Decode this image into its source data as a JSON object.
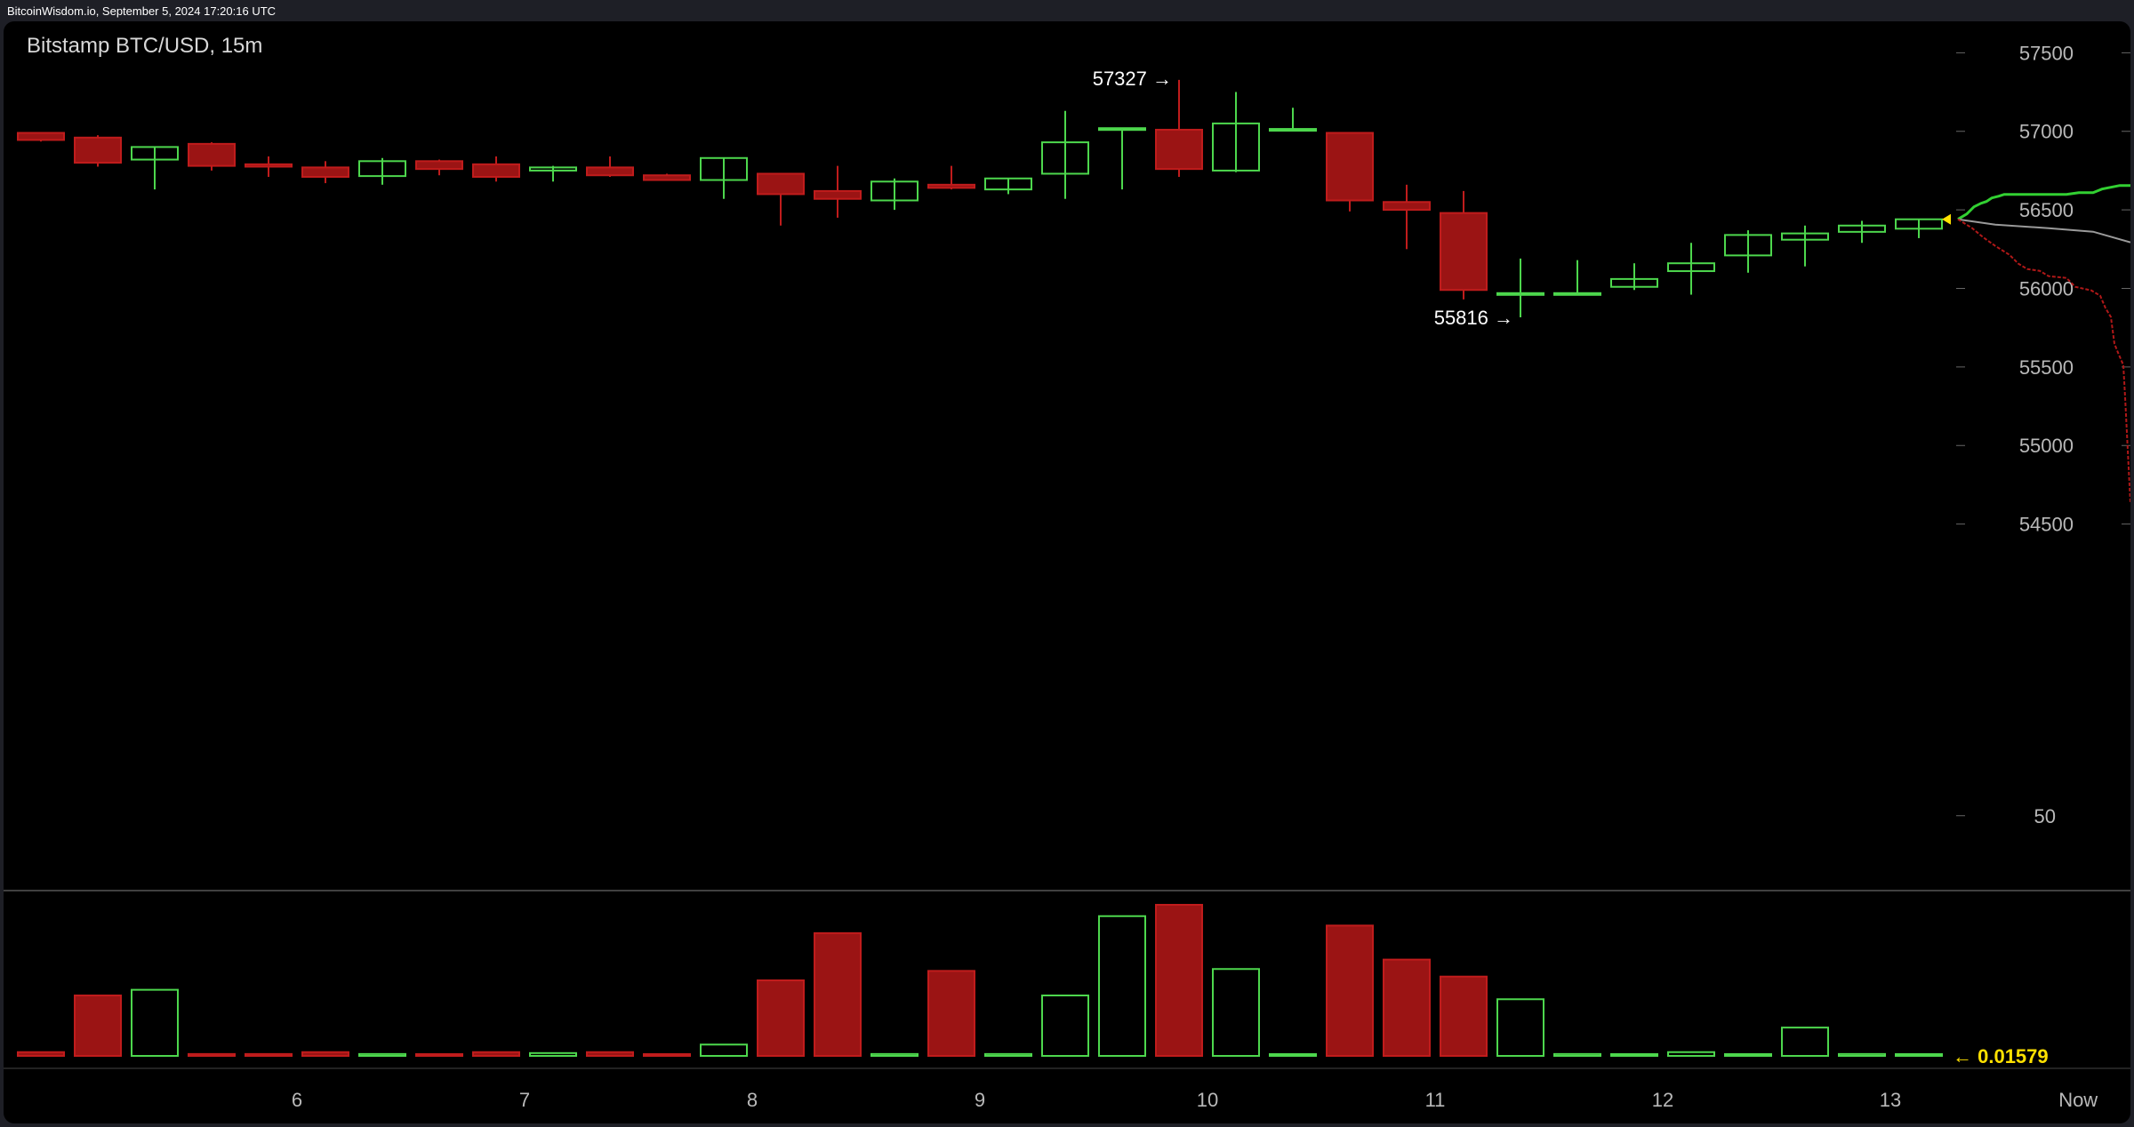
{
  "header": {
    "stamp": "BitcoinWisdom.io, September 5, 2024 17:20:16 UTC"
  },
  "chart_data": {
    "type": "candlestick",
    "title": "Bitstamp BTC/USD, 15m",
    "price_ylim": [
      54000,
      57700
    ],
    "price_ticks": [
      "57500",
      "57000",
      "56500",
      "56000",
      "55500",
      "55000",
      "54500"
    ],
    "volume_ylim": [
      0,
      80
    ],
    "volume_tick": "50",
    "x_ticks": [
      {
        "label": "6",
        "index": 4.5
      },
      {
        "label": "7",
        "index": 8.5
      },
      {
        "label": "8",
        "index": 12.5
      },
      {
        "label": "9",
        "index": 16.5
      },
      {
        "label": "10",
        "index": 20.5
      },
      {
        "label": "11",
        "index": 24.5
      },
      {
        "label": "12",
        "index": 28.5
      },
      {
        "label": "13",
        "index": 32.5
      },
      {
        "label": "Now",
        "index": 35.8
      }
    ],
    "candles": [
      {
        "o": 56990,
        "h": 56995,
        "l": 56935,
        "c": 56945,
        "v": 2
      },
      {
        "o": 56960,
        "h": 56975,
        "l": 56775,
        "c": 56800,
        "v": 32
      },
      {
        "o": 56820,
        "h": 56900,
        "l": 56630,
        "c": 56900,
        "v": 35
      },
      {
        "o": 56920,
        "h": 56930,
        "l": 56750,
        "c": 56780,
        "v": 1
      },
      {
        "o": 56790,
        "h": 56840,
        "l": 56710,
        "c": 56775,
        "v": 1
      },
      {
        "o": 56770,
        "h": 56810,
        "l": 56670,
        "c": 56710,
        "v": 2
      },
      {
        "o": 56715,
        "h": 56830,
        "l": 56660,
        "c": 56810,
        "v": 1
      },
      {
        "o": 56810,
        "h": 56820,
        "l": 56720,
        "c": 56760,
        "v": 0.5
      },
      {
        "o": 56790,
        "h": 56840,
        "l": 56680,
        "c": 56710,
        "v": 2
      },
      {
        "o": 56750,
        "h": 56780,
        "l": 56680,
        "c": 56770,
        "v": 1.5
      },
      {
        "o": 56770,
        "h": 56840,
        "l": 56710,
        "c": 56720,
        "v": 2
      },
      {
        "o": 56720,
        "h": 56730,
        "l": 56690,
        "c": 56690,
        "v": 0.5
      },
      {
        "o": 56690,
        "h": 56830,
        "l": 56570,
        "c": 56830,
        "v": 6
      },
      {
        "o": 56730,
        "h": 56730,
        "l": 56400,
        "c": 56600,
        "v": 40
      },
      {
        "o": 56620,
        "h": 56780,
        "l": 56450,
        "c": 56570,
        "v": 65
      },
      {
        "o": 56560,
        "h": 56700,
        "l": 56500,
        "c": 56680,
        "v": 1
      },
      {
        "o": 56660,
        "h": 56780,
        "l": 56630,
        "c": 56640,
        "v": 45
      },
      {
        "o": 56630,
        "h": 56700,
        "l": 56600,
        "c": 56700,
        "v": 1
      },
      {
        "o": 56730,
        "h": 57130,
        "l": 56570,
        "c": 56930,
        "v": 32
      },
      {
        "o": 57020,
        "h": 57020,
        "l": 56630,
        "c": 57020,
        "v": 74
      },
      {
        "o": 57010,
        "h": 57327,
        "l": 56710,
        "c": 56760,
        "v": 80
      },
      {
        "o": 56750,
        "h": 57250,
        "l": 56740,
        "c": 57050,
        "v": 46
      },
      {
        "o": 57015,
        "h": 57150,
        "l": 57010,
        "c": 57015,
        "v": 0.5
      },
      {
        "o": 56990,
        "h": 56990,
        "l": 56490,
        "c": 56560,
        "v": 69
      },
      {
        "o": 56550,
        "h": 56660,
        "l": 56250,
        "c": 56500,
        "v": 51
      },
      {
        "o": 56480,
        "h": 56620,
        "l": 55930,
        "c": 55990,
        "v": 42
      },
      {
        "o": 55960,
        "h": 56190,
        "l": 55816,
        "c": 55970,
        "v": 30
      },
      {
        "o": 55960,
        "h": 56180,
        "l": 55960,
        "c": 55970,
        "v": 1
      },
      {
        "o": 56010,
        "h": 56160,
        "l": 55990,
        "c": 56060,
        "v": 0.5
      },
      {
        "o": 56110,
        "h": 56290,
        "l": 55960,
        "c": 56160,
        "v": 2
      },
      {
        "o": 56210,
        "h": 56370,
        "l": 56100,
        "c": 56340,
        "v": 0.5
      },
      {
        "o": 56310,
        "h": 56400,
        "l": 56140,
        "c": 56350,
        "v": 15
      },
      {
        "o": 56360,
        "h": 56430,
        "l": 56290,
        "c": 56400,
        "v": 1
      },
      {
        "o": 56380,
        "h": 56440,
        "l": 56320,
        "c": 56440,
        "v": 0.01579
      }
    ],
    "annotations": [
      {
        "text": "57327 →",
        "candle": 20,
        "price": 57327
      },
      {
        "text": "55816 →",
        "candle": 26,
        "price": 55816
      }
    ],
    "current_volume": "← 0.01579",
    "colors": {
      "up": "#4dd74d",
      "down": "#9b1414",
      "down_border": "#c01c1c",
      "background": "#000000",
      "axis_text": "#b9b9b9",
      "marker": "#ffe100",
      "ask_depth": "#32d032",
      "bid_depth": "#b01818",
      "mid_line": "#9a9a9a"
    }
  }
}
